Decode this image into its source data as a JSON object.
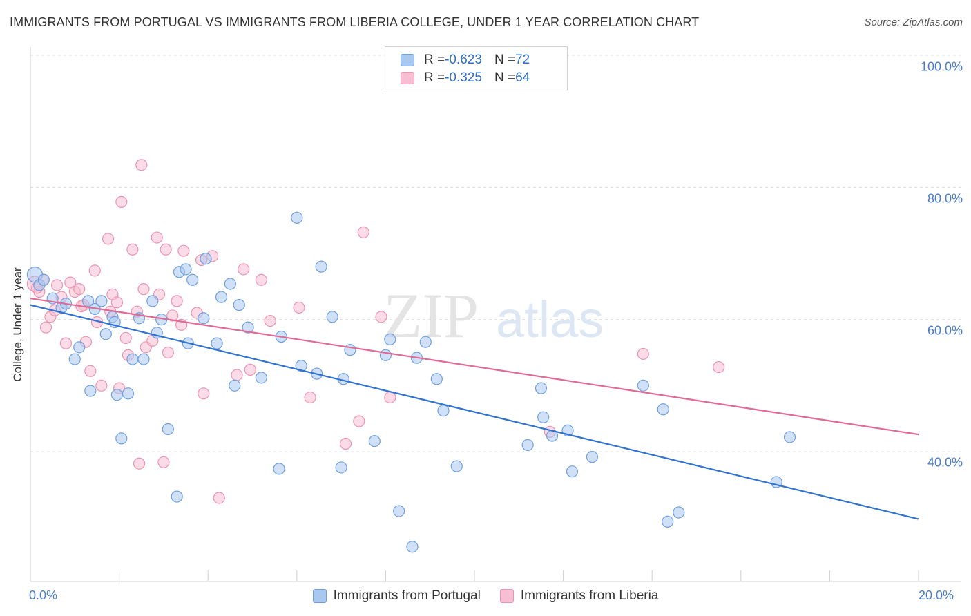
{
  "title": "IMMIGRANTS FROM PORTUGAL VS IMMIGRANTS FROM LIBERIA COLLEGE, UNDER 1 YEAR CORRELATION CHART",
  "source": "Source: ZipAtlas.com",
  "watermark": "ZIPatlas",
  "colors": {
    "portugal_fill": "#a9c8f0",
    "portugal_stroke": "#6f9fe0",
    "portugal_line": "#2f72d0",
    "liberia_fill": "#f7bdd0",
    "liberia_stroke": "#ec94b0",
    "liberia_line": "#e06a96",
    "tick_label": "#4a7cc9"
  },
  "legend": {
    "rows": [
      {
        "r_label": "R = ",
        "r_value": "-0.623",
        "n_label": "N = ",
        "n_value": "72"
      },
      {
        "r_label": "R = ",
        "r_value": "-0.325",
        "n_label": "N = ",
        "n_value": "64"
      }
    ]
  },
  "chart_data": {
    "type": "scatter",
    "title": "IMMIGRANTS FROM PORTUGAL VS IMMIGRANTS FROM LIBERIA COLLEGE, UNDER 1 YEAR CORRELATION CHART",
    "xlabel": "",
    "ylabel": "College, Under 1 year",
    "xlim": [
      0,
      20
    ],
    "ylim": [
      20,
      103
    ],
    "x_tick_labels": [
      "0.0%",
      "20.0%"
    ],
    "y_ticks": [
      40,
      60,
      80,
      100
    ],
    "y_tick_labels": [
      "40.0%",
      "60.0%",
      "80.0%",
      "100.0%"
    ],
    "grid": true,
    "legend_position": "top-center",
    "series": [
      {
        "name": "Immigrants from Portugal",
        "trend": {
          "x": [
            0,
            20
          ],
          "y": [
            62.2,
            29.8
          ]
        },
        "points": [
          {
            "x": 0.1,
            "y": 66.8,
            "big": true
          },
          {
            "x": 0.2,
            "y": 65.2
          },
          {
            "x": 0.3,
            "y": 66.0
          },
          {
            "x": 0.5,
            "y": 63.2
          },
          {
            "x": 0.7,
            "y": 61.8
          },
          {
            "x": 0.8,
            "y": 62.4
          },
          {
            "x": 1.0,
            "y": 54.0
          },
          {
            "x": 1.1,
            "y": 55.8
          },
          {
            "x": 1.3,
            "y": 62.8
          },
          {
            "x": 1.35,
            "y": 49.2
          },
          {
            "x": 1.45,
            "y": 61.6
          },
          {
            "x": 1.6,
            "y": 62.8
          },
          {
            "x": 1.7,
            "y": 57.8
          },
          {
            "x": 1.85,
            "y": 60.4
          },
          {
            "x": 1.95,
            "y": 48.6
          },
          {
            "x": 2.05,
            "y": 42.0
          },
          {
            "x": 2.2,
            "y": 48.8
          },
          {
            "x": 2.3,
            "y": 54.0
          },
          {
            "x": 2.45,
            "y": 60.2
          },
          {
            "x": 2.55,
            "y": 54.0
          },
          {
            "x": 2.75,
            "y": 62.8
          },
          {
            "x": 2.85,
            "y": 58.0
          },
          {
            "x": 2.95,
            "y": 60.0
          },
          {
            "x": 3.1,
            "y": 43.4
          },
          {
            "x": 3.3,
            "y": 33.2
          },
          {
            "x": 3.35,
            "y": 67.2
          },
          {
            "x": 3.5,
            "y": 67.6
          },
          {
            "x": 3.55,
            "y": 56.4
          },
          {
            "x": 3.65,
            "y": 66.0
          },
          {
            "x": 3.9,
            "y": 60.2
          },
          {
            "x": 3.95,
            "y": 69.2
          },
          {
            "x": 4.2,
            "y": 56.4
          },
          {
            "x": 4.3,
            "y": 63.4
          },
          {
            "x": 4.5,
            "y": 65.4
          },
          {
            "x": 4.6,
            "y": 50.0
          },
          {
            "x": 4.7,
            "y": 62.2
          },
          {
            "x": 4.9,
            "y": 58.8
          },
          {
            "x": 5.2,
            "y": 51.2
          },
          {
            "x": 5.6,
            "y": 37.4
          },
          {
            "x": 5.65,
            "y": 57.4
          },
          {
            "x": 6.0,
            "y": 75.4
          },
          {
            "x": 6.1,
            "y": 53.0
          },
          {
            "x": 6.45,
            "y": 51.8
          },
          {
            "x": 6.55,
            "y": 68.0
          },
          {
            "x": 6.8,
            "y": 60.4
          },
          {
            "x": 7.0,
            "y": 37.6
          },
          {
            "x": 7.05,
            "y": 51.0
          },
          {
            "x": 7.2,
            "y": 55.4
          },
          {
            "x": 7.75,
            "y": 41.6
          },
          {
            "x": 8.0,
            "y": 54.6
          },
          {
            "x": 8.1,
            "y": 57.0
          },
          {
            "x": 8.3,
            "y": 31.0
          },
          {
            "x": 8.6,
            "y": 25.6
          },
          {
            "x": 8.7,
            "y": 54.2
          },
          {
            "x": 8.9,
            "y": 56.6
          },
          {
            "x": 9.15,
            "y": 51.0
          },
          {
            "x": 9.3,
            "y": 46.2
          },
          {
            "x": 9.6,
            "y": 37.8
          },
          {
            "x": 11.2,
            "y": 41.0
          },
          {
            "x": 11.5,
            "y": 49.6
          },
          {
            "x": 11.55,
            "y": 45.2
          },
          {
            "x": 11.75,
            "y": 42.4
          },
          {
            "x": 12.1,
            "y": 43.2
          },
          {
            "x": 12.2,
            "y": 37.0
          },
          {
            "x": 12.65,
            "y": 39.2
          },
          {
            "x": 13.8,
            "y": 50.0
          },
          {
            "x": 14.25,
            "y": 46.4
          },
          {
            "x": 14.35,
            "y": 29.4
          },
          {
            "x": 14.6,
            "y": 30.8
          },
          {
            "x": 16.8,
            "y": 35.4
          },
          {
            "x": 17.1,
            "y": 42.2
          },
          {
            "x": 1.9,
            "y": 59.6
          }
        ]
      },
      {
        "name": "Immigrants from Liberia",
        "trend": {
          "x": [
            0,
            20
          ],
          "y": [
            63.2,
            42.6
          ]
        },
        "points": [
          {
            "x": 0.1,
            "y": 65.4,
            "big": true
          },
          {
            "x": 0.2,
            "y": 64.2
          },
          {
            "x": 0.35,
            "y": 58.8
          },
          {
            "x": 0.45,
            "y": 60.4
          },
          {
            "x": 0.55,
            "y": 61.4
          },
          {
            "x": 0.6,
            "y": 65.2
          },
          {
            "x": 0.7,
            "y": 63.4
          },
          {
            "x": 0.8,
            "y": 56.4
          },
          {
            "x": 0.9,
            "y": 65.6
          },
          {
            "x": 1.0,
            "y": 64.2
          },
          {
            "x": 1.1,
            "y": 64.6
          },
          {
            "x": 1.2,
            "y": 62.2
          },
          {
            "x": 1.25,
            "y": 56.6
          },
          {
            "x": 1.35,
            "y": 52.2
          },
          {
            "x": 1.45,
            "y": 67.4
          },
          {
            "x": 1.5,
            "y": 59.6
          },
          {
            "x": 1.6,
            "y": 50.0
          },
          {
            "x": 1.75,
            "y": 72.2
          },
          {
            "x": 1.8,
            "y": 61.2
          },
          {
            "x": 1.85,
            "y": 63.8
          },
          {
            "x": 1.95,
            "y": 62.6
          },
          {
            "x": 2.0,
            "y": 49.6
          },
          {
            "x": 2.05,
            "y": 77.8
          },
          {
            "x": 2.15,
            "y": 57.2
          },
          {
            "x": 2.2,
            "y": 54.6
          },
          {
            "x": 2.3,
            "y": 70.6
          },
          {
            "x": 2.4,
            "y": 61.2
          },
          {
            "x": 2.45,
            "y": 38.2
          },
          {
            "x": 2.5,
            "y": 83.4
          },
          {
            "x": 2.6,
            "y": 55.8
          },
          {
            "x": 2.75,
            "y": 56.8
          },
          {
            "x": 2.85,
            "y": 72.4
          },
          {
            "x": 2.9,
            "y": 63.8
          },
          {
            "x": 3.0,
            "y": 38.4
          },
          {
            "x": 3.05,
            "y": 70.6
          },
          {
            "x": 3.1,
            "y": 55.0
          },
          {
            "x": 3.3,
            "y": 62.8
          },
          {
            "x": 3.4,
            "y": 59.2
          },
          {
            "x": 3.45,
            "y": 70.4
          },
          {
            "x": 3.75,
            "y": 61.0
          },
          {
            "x": 3.85,
            "y": 69.0
          },
          {
            "x": 3.9,
            "y": 48.8
          },
          {
            "x": 4.1,
            "y": 69.6
          },
          {
            "x": 4.25,
            "y": 33.0
          },
          {
            "x": 4.65,
            "y": 51.6
          },
          {
            "x": 4.8,
            "y": 67.6
          },
          {
            "x": 4.95,
            "y": 52.4
          },
          {
            "x": 5.2,
            "y": 66.0
          },
          {
            "x": 5.4,
            "y": 59.8
          },
          {
            "x": 6.05,
            "y": 61.8
          },
          {
            "x": 6.3,
            "y": 48.2
          },
          {
            "x": 7.1,
            "y": 41.2
          },
          {
            "x": 7.4,
            "y": 44.6
          },
          {
            "x": 7.5,
            "y": 73.2
          },
          {
            "x": 7.9,
            "y": 60.4
          },
          {
            "x": 8.1,
            "y": 48.2
          },
          {
            "x": 11.7,
            "y": 43.0
          },
          {
            "x": 13.8,
            "y": 54.8
          },
          {
            "x": 15.5,
            "y": 52.8
          },
          {
            "x": 0.3,
            "y": 66.0
          },
          {
            "x": 1.15,
            "y": 62.0
          },
          {
            "x": 2.55,
            "y": 64.6
          },
          {
            "x": 3.2,
            "y": 60.6
          },
          {
            "x": 0.15,
            "y": 64.8
          }
        ]
      }
    ]
  }
}
